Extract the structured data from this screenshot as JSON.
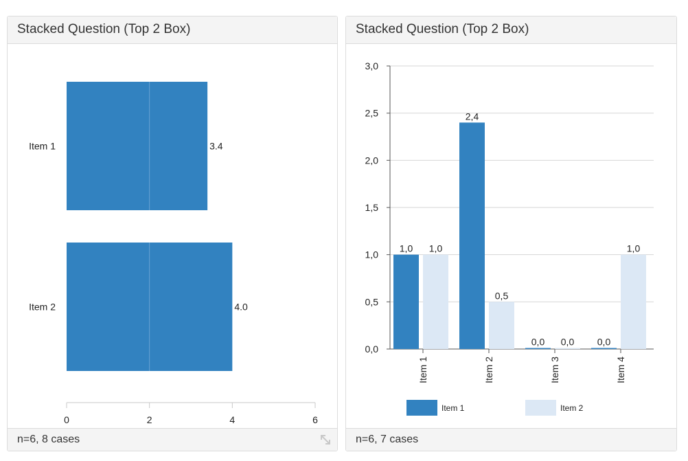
{
  "panels": [
    {
      "title": "Stacked Question (Top 2 Box)",
      "footer": "n=6, 8 cases"
    },
    {
      "title": "Stacked Question (Top 2 Box)",
      "footer": "n=6, 7 cases"
    }
  ],
  "icons": {
    "resize": "resize-arrows-icon"
  },
  "chart_data": [
    {
      "type": "bar",
      "orientation": "horizontal",
      "categories": [
        "Item 1",
        "Item 2"
      ],
      "values": [
        3.4,
        4.0
      ],
      "data_labels": [
        "3.4",
        "4.0"
      ],
      "x_ticks": [
        "0",
        "2",
        "4",
        "6"
      ],
      "xlim": [
        0,
        6
      ],
      "color": "#3282c0",
      "grid": false
    },
    {
      "type": "bar",
      "orientation": "vertical",
      "categories": [
        "Item 1",
        "Item 2",
        "Item 3",
        "Item 4"
      ],
      "series": [
        {
          "name": "Item 1",
          "values": [
            1.0,
            2.4,
            0.0,
            0.0
          ],
          "labels": [
            "1,0",
            "2,4",
            "0,0",
            "0,0"
          ],
          "color": "#3282c0"
        },
        {
          "name": "Item 2",
          "values": [
            1.0,
            0.5,
            0.0,
            1.0
          ],
          "labels": [
            "1,0",
            "0,5",
            "0,0",
            "1,0"
          ],
          "color": "#dce8f5"
        }
      ],
      "y_ticks": [
        "0,0",
        "0,5",
        "1,0",
        "1,5",
        "2,0",
        "2,5",
        "3,0"
      ],
      "ylim": [
        0,
        3
      ],
      "grid": true,
      "legend": "bottom"
    }
  ]
}
